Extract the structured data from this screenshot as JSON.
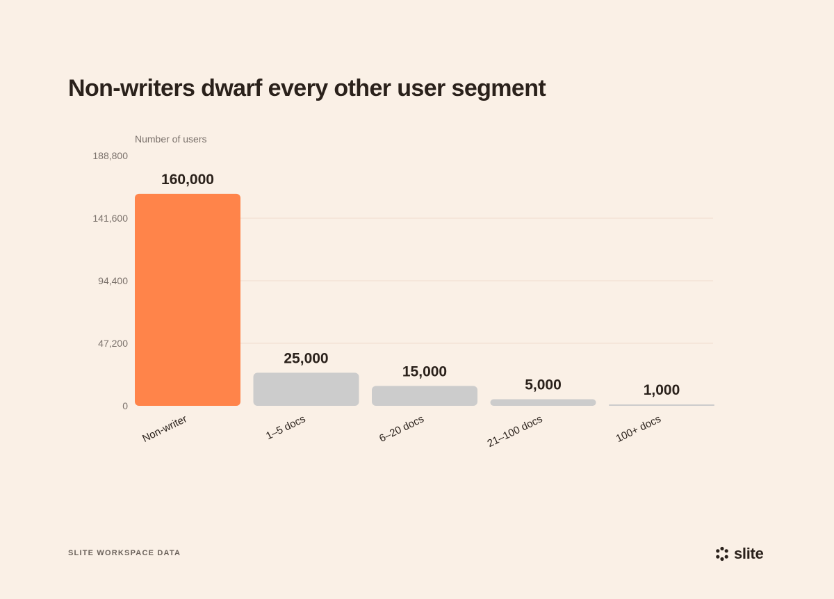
{
  "title": "Non-writers dwarf every other user segment",
  "source": "SLITE WORKSPACE DATA",
  "logo": {
    "text": "slite",
    "icon": "slite-logo-icon"
  },
  "colors": {
    "background": "#FAF0E6",
    "highlight": "#FF844A",
    "bar": "#CCCCCC",
    "grid": "#F3E3D6",
    "text": "#2A211B",
    "muted": "#7A716B"
  },
  "chart_data": {
    "type": "bar",
    "ylabel": "Number of users",
    "categories": [
      "Non-writer",
      "1–5 docs",
      "6–20 docs",
      "21–100 docs",
      "100+ docs"
    ],
    "values": [
      160000,
      25000,
      15000,
      5000,
      1000
    ],
    "value_labels": [
      "160,000",
      "25,000",
      "15,000",
      "5,000",
      "1,000"
    ],
    "highlight_index": 0,
    "ylim": [
      0,
      188800
    ],
    "yticks": [
      0,
      47200,
      94400,
      141600,
      188800
    ],
    "ytick_labels": [
      "0",
      "47,200",
      "94,400",
      "141,600",
      "188,800"
    ],
    "grid": true
  }
}
